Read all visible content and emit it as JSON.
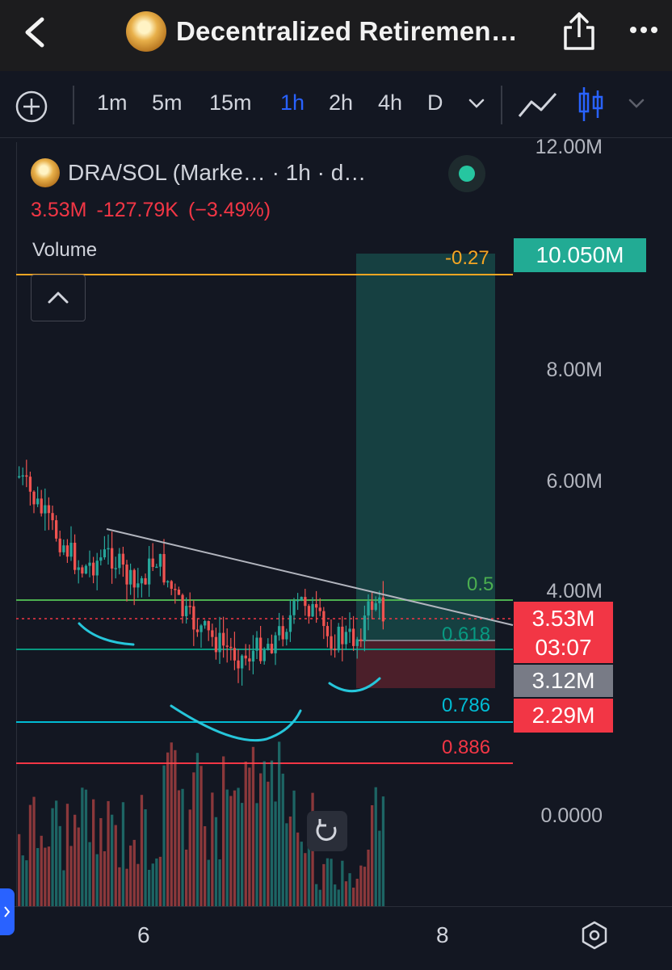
{
  "header": {
    "title": "Decentralized Retiremen…",
    "back_icon": "chevron-left-icon",
    "share_icon": "share-icon",
    "more_icon": "more-dots-icon"
  },
  "toolbar": {
    "timeframes": [
      {
        "label": "1m",
        "active": false
      },
      {
        "label": "5m",
        "active": false
      },
      {
        "label": "15m",
        "active": false
      },
      {
        "label": "1h",
        "active": true
      },
      {
        "label": "2h",
        "active": false
      },
      {
        "label": "4h",
        "active": false
      },
      {
        "label": "D",
        "active": false
      }
    ],
    "accent": "#2962ff"
  },
  "legend": {
    "symbol": "DRA/SOL (Marke…",
    "details": "· 1h · d…",
    "price": "3.53M",
    "change": "-127.79K",
    "change_pct": "(−3.49%)",
    "volume_label": "Volume"
  },
  "chart_data": {
    "type": "candlestick",
    "pair": "DRA/SOL",
    "interval": "1h",
    "y_axis": {
      "ticks": [
        "12.00M",
        "8.00M",
        "6.00M",
        "4.00M",
        "0.0000"
      ]
    },
    "x_axis": {
      "ticks": [
        "6",
        "8"
      ]
    },
    "price_tags": [
      {
        "label": "10.050M",
        "color": "#22ab94"
      },
      {
        "label": "3.53M",
        "sub": "03:07",
        "color": "#f23645"
      },
      {
        "label": "3.12M",
        "color": "#787b86"
      },
      {
        "label": "2.29M",
        "color": "#f23645"
      }
    ],
    "fib_levels": [
      {
        "label": "-0.27",
        "color": "#f5a623"
      },
      {
        "label": "0.5",
        "color": "#4caf50"
      },
      {
        "label": "0.618",
        "color": "#089981"
      },
      {
        "label": "0.786",
        "color": "#00bcd4"
      },
      {
        "label": "0.886",
        "color": "#f23645"
      }
    ],
    "colors": {
      "up": "#26a69a",
      "down": "#ef5350",
      "drawing": "#26c6da",
      "trendline": "#b2b5be"
    }
  },
  "bottom": {
    "settings_icon": "hexagon-settings-icon"
  }
}
